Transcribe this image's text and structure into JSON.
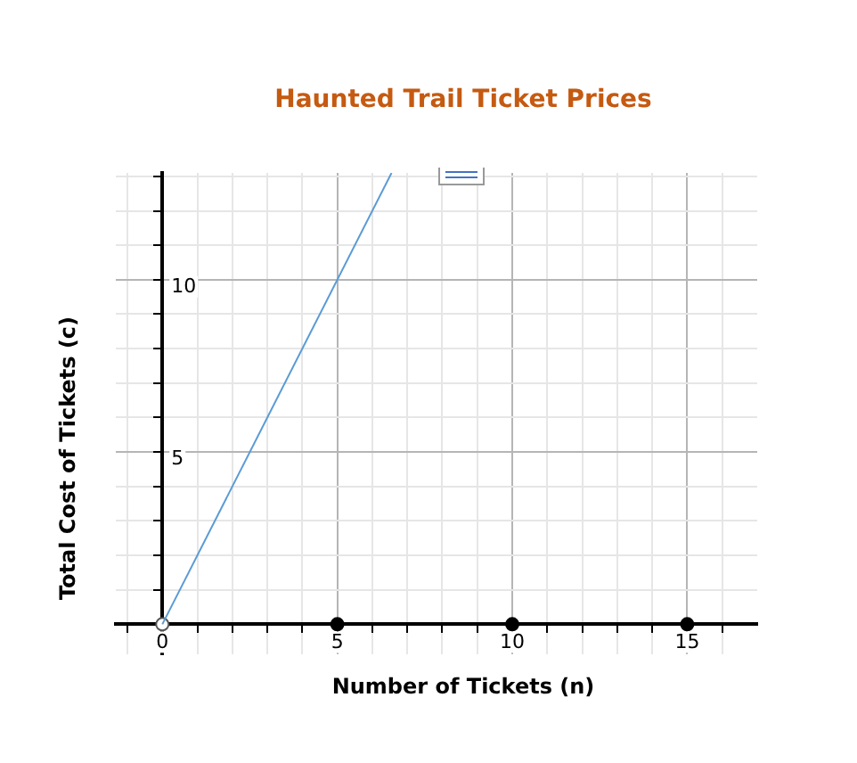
{
  "chart_data": {
    "type": "line",
    "title": "Haunted Trail Ticket Prices",
    "xlabel": "Number of Tickets (n)",
    "ylabel": "Total Cost of Tickets (c)",
    "xlim": [
      -1.33,
      17
    ],
    "ylim": [
      -0.87,
      13.1
    ],
    "xticks": [
      {
        "value": -1,
        "label": null
      },
      {
        "value": 0,
        "label": "0"
      },
      {
        "value": 1,
        "label": null
      },
      {
        "value": 2,
        "label": null
      },
      {
        "value": 3,
        "label": null
      },
      {
        "value": 4,
        "label": null
      },
      5,
      {
        "value": 6,
        "label": null
      },
      {
        "value": 7,
        "label": null
      },
      {
        "value": 8,
        "label": null
      },
      {
        "value": 9,
        "label": null
      },
      10,
      {
        "value": 11,
        "label": null
      },
      {
        "value": 12,
        "label": null
      },
      {
        "value": 13,
        "label": null
      },
      {
        "value": 14,
        "label": null
      },
      15,
      {
        "value": 16,
        "label": null
      }
    ],
    "yticks": [
      {
        "value": 1,
        "label": null
      },
      {
        "value": 2,
        "label": null
      },
      {
        "value": 3,
        "label": null
      },
      {
        "value": 4,
        "label": null
      },
      5,
      {
        "value": 6,
        "label": null
      },
      {
        "value": 7,
        "label": null
      },
      {
        "value": 8,
        "label": null
      },
      {
        "value": 9,
        "label": null
      },
      10,
      {
        "value": 11,
        "label": null
      },
      {
        "value": 12,
        "label": null
      },
      {
        "value": 13,
        "label": null
      }
    ],
    "grid": true,
    "legend": false,
    "series": [
      {
        "color": "#5b9bd5",
        "x": [
          0,
          6.55
        ],
        "values": [
          0,
          13.1
        ],
        "marker": "none"
      },
      {
        "type": "scatter",
        "color": "#ffffff",
        "x": [
          0
        ],
        "values": [
          0
        ],
        "marker": "circle"
      },
      {
        "type": "scatter",
        "color": "#000000",
        "x": [
          5,
          10,
          15
        ],
        "values": [
          0,
          0,
          0
        ],
        "marker": "circle"
      }
    ]
  }
}
